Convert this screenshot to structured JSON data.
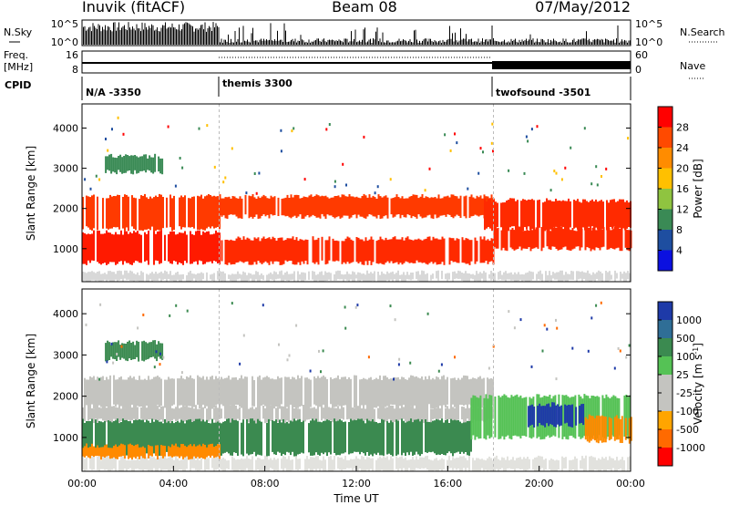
{
  "header": {
    "station": "Inuvik (fitACF)",
    "beam": "Beam 08",
    "date": "07/May/2012"
  },
  "panels": {
    "nsky_label": "N.Sky",
    "freq_label_1": "Freq.",
    "freq_label_2": "[MHz]",
    "cpid_label": "CPID",
    "nsearch_label": "N.Search",
    "nave_label": "Nave",
    "nsky_ticks": [
      "10^5",
      "10^0"
    ],
    "nsearch_ticks": [
      "10^5",
      "10^0"
    ],
    "freq_ticks": [
      "16",
      "8"
    ],
    "nave_ticks": [
      "60",
      "0"
    ],
    "cpid_segments": [
      {
        "start_hour": 0,
        "label": "N/A -3350"
      },
      {
        "start_hour": 6,
        "label": "themis 3300"
      },
      {
        "start_hour": 18,
        "label": "twofsound -3501"
      }
    ]
  },
  "colorbars": {
    "power": {
      "label": "Power [dB]",
      "ticks": [
        "28",
        "24",
        "20",
        "16",
        "12",
        "8",
        "4"
      ],
      "colors": [
        "#ff0000",
        "#ff4a00",
        "#ff8c00",
        "#ffc000",
        "#8fc440",
        "#3a8a55",
        "#1e4ea0",
        "#0b10e0"
      ]
    },
    "velocity": {
      "label": "Velocity [m s",
      "label_sup": "-1",
      "label_end": "]",
      "ticks": [
        "1000",
        "500",
        "100",
        "25",
        "-25",
        "-100",
        "-500",
        "-1000"
      ],
      "colors": [
        "#1e3aa8",
        "#2f6e96",
        "#3b8a50",
        "#55c255",
        "#c4c4c0",
        "#c4c4c0",
        "#ffa500",
        "#ff6a00",
        "#ff0000"
      ]
    }
  },
  "chart_data": [
    {
      "type": "heatmap",
      "name": "power",
      "ylabel": "Slant Range [km]",
      "x_range_hours": [
        0,
        24
      ],
      "ylim": [
        180,
        4600
      ],
      "yticks": [
        1000,
        2000,
        3000,
        4000
      ],
      "bands": [
        {
          "from_h": 0.0,
          "to_h": 6.0,
          "y0": 650,
          "y1": 1400,
          "color": "#ff1a00"
        },
        {
          "from_h": 6.0,
          "to_h": 18.0,
          "y0": 650,
          "y1": 1250,
          "color": "#ff2a00"
        },
        {
          "from_h": 18.0,
          "to_h": 24.0,
          "y0": 1000,
          "y1": 1500,
          "color": "#ff2a00"
        },
        {
          "from_h": 0.0,
          "to_h": 6.0,
          "y0": 1500,
          "y1": 2300,
          "color": "#ff3a00"
        },
        {
          "from_h": 6.0,
          "to_h": 18.0,
          "y0": 1800,
          "y1": 2300,
          "color": "#ff3a00"
        },
        {
          "from_h": 17.5,
          "to_h": 24.0,
          "y0": 1500,
          "y1": 2200,
          "color": "#ff2a00"
        },
        {
          "from_h": 0.0,
          "to_h": 24.0,
          "y0": 200,
          "y1": 400,
          "color": "#d8d8d8"
        },
        {
          "from_h": 1.0,
          "to_h": 3.5,
          "y0": 2900,
          "y1": 3300,
          "color": "#3a8a55"
        }
      ]
    },
    {
      "type": "heatmap",
      "name": "velocity",
      "xlabel": "Time UT",
      "ylabel": "Slant Range [km]",
      "x_range_hours": [
        0,
        24
      ],
      "xticks": [
        "00:00",
        "04:00",
        "08:00",
        "12:00",
        "16:00",
        "20:00",
        "00:00"
      ],
      "ylim": [
        180,
        4600
      ],
      "yticks": [
        1000,
        2000,
        3000,
        4000
      ],
      "bands": [
        {
          "from_h": 0.0,
          "to_h": 18.0,
          "y0": 1750,
          "y1": 2450,
          "color": "#c4c4c0"
        },
        {
          "from_h": 0.0,
          "to_h": 18.0,
          "y0": 1400,
          "y1": 1750,
          "color": "#c4c4c0"
        },
        {
          "from_h": 0.0,
          "to_h": 17.0,
          "y0": 600,
          "y1": 1400,
          "color": "#3b8a50"
        },
        {
          "from_h": 17.0,
          "to_h": 24.0,
          "y0": 1000,
          "y1": 2000,
          "color": "#55c255"
        },
        {
          "from_h": 19.5,
          "to_h": 22.0,
          "y0": 1300,
          "y1": 1800,
          "color": "#1e3aa8"
        },
        {
          "from_h": 22.0,
          "to_h": 24.0,
          "y0": 900,
          "y1": 1500,
          "color": "#ff8a00"
        },
        {
          "from_h": 0.0,
          "to_h": 6.0,
          "y0": 500,
          "y1": 800,
          "color": "#ff8a00"
        },
        {
          "from_h": 0.0,
          "to_h": 24.0,
          "y0": 200,
          "y1": 500,
          "color": "#e2e2de"
        },
        {
          "from_h": 1.0,
          "to_h": 3.5,
          "y0": 2900,
          "y1": 3300,
          "color": "#3b8a50"
        }
      ]
    }
  ]
}
